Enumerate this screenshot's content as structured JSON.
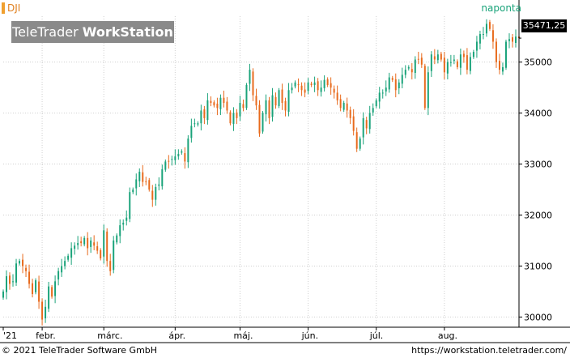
{
  "header": {
    "symbol": "DJI",
    "period": "naponta",
    "logo_light": "TeleTrader",
    "logo_bold": "WorkStation",
    "last_price": "35471,25"
  },
  "footer": {
    "copyright": "© 2021 TeleTrader Software GmbH",
    "url": "https://workstation.teletrader.com/"
  },
  "colors": {
    "up": "#1aa37a",
    "down": "#e86a1c",
    "grid": "#cfcfcf",
    "axis": "#000000"
  },
  "chart_data": {
    "type": "candlestick",
    "y_ticks": [
      30000,
      31000,
      32000,
      33000,
      34000,
      35000
    ],
    "y_tick_labels": [
      "30000",
      "31000",
      "32000",
      "33000",
      "34000",
      "35000"
    ],
    "ylim": [
      29800,
      35900
    ],
    "x_labels": [
      {
        "label": "'21",
        "day": 0
      },
      {
        "label": "febr.",
        "day": 12
      },
      {
        "label": "márc.",
        "day": 31
      },
      {
        "label": "ápr.",
        "day": 53
      },
      {
        "label": "máj.",
        "day": 73
      },
      {
        "label": "jún.",
        "day": 94
      },
      {
        "label": "júl.",
        "day": 115
      },
      {
        "label": "aug.",
        "day": 136
      }
    ],
    "x_range": [
      0,
      159
    ],
    "closes": [
      30500,
      30800,
      30650,
      30700,
      31050,
      31100,
      31000,
      30900,
      30650,
      30450,
      30720,
      30300,
      29950,
      30200,
      30600,
      30400,
      30700,
      30900,
      31000,
      31100,
      31200,
      31350,
      31400,
      31450,
      31450,
      31550,
      31350,
      31500,
      31400,
      31300,
      31150,
      31700,
      31100,
      30900,
      31500,
      31600,
      31800,
      31850,
      31950,
      32450,
      32500,
      32700,
      32850,
      32650,
      32650,
      32500,
      32300,
      32550,
      32600,
      32900,
      33050,
      33050,
      33100,
      33150,
      33200,
      33250,
      33050,
      33500,
      33750,
      33800,
      33800,
      34050,
      33900,
      34250,
      34200,
      34150,
      34100,
      34300,
      34200,
      34050,
      33800,
      34000,
      33900,
      34200,
      34100,
      34550,
      34850,
      34350,
      34150,
      33600,
      34000,
      34250,
      33900,
      34350,
      34150,
      34450,
      34200,
      34050,
      34450,
      34500,
      34600,
      34550,
      34450,
      34400,
      34600,
      34550,
      34600,
      34450,
      34500,
      34650,
      34550,
      34500,
      34400,
      34250,
      34100,
      34200,
      34050,
      33900,
      33650,
      33300,
      33500,
      33900,
      33700,
      34000,
      34100,
      34250,
      34400,
      34400,
      34500,
      34700,
      34650,
      34450,
      34600,
      34750,
      34850,
      34900,
      34800,
      35050,
      35050,
      34950,
      34100,
      34800,
      35150,
      35050,
      35150,
      35050,
      34800,
      35000,
      35000,
      35050,
      34900,
      35150,
      35100,
      34850,
      35100,
      35200,
      35400,
      35550,
      35550,
      35750,
      35650,
      35400,
      35000,
      34850,
      34900,
      35400,
      35450,
      35400,
      35500,
      35470
    ],
    "bar_width_days": 0.9
  }
}
